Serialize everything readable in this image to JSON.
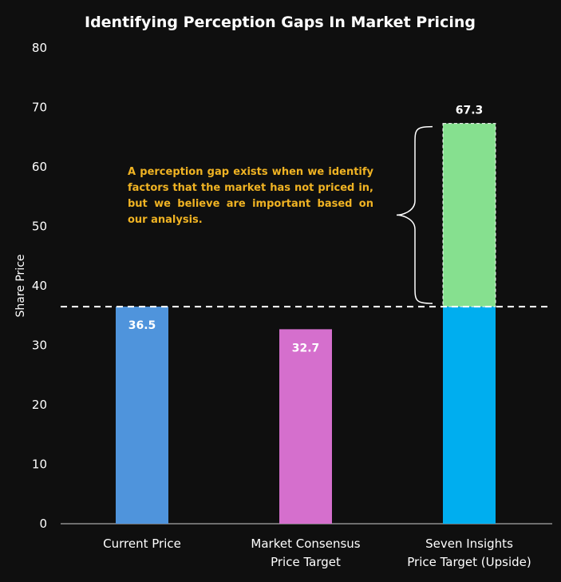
{
  "chart_data": {
    "type": "bar",
    "title": "Identifying Perception Gaps In Market Pricing",
    "ylabel": "Share Price",
    "ylim": [
      0,
      80
    ],
    "yticks": [
      0,
      10,
      20,
      30,
      40,
      50,
      60,
      70,
      80
    ],
    "categories": [
      [
        "Current Price"
      ],
      [
        "Market Consensus",
        "Price Target"
      ],
      [
        "Seven Insights",
        "Price Target (Upside)"
      ]
    ],
    "values": [
      36.5,
      32.7,
      67.3
    ],
    "data_labels": [
      "36.5",
      "32.7",
      "67.3"
    ],
    "colors": [
      "#4f94dc",
      "#d56fcd",
      "#00aeef"
    ],
    "upside": {
      "from": 36.5,
      "to": 67.3,
      "color": "#86e08f"
    },
    "reference_line": {
      "value": 36.5,
      "style": "dashed",
      "color": "#ffffff"
    },
    "annotation": "A perception gap exists when we identify factors that the market has not priced in, but we believe are important based on our analysis.",
    "annotation_color": "#f0b323",
    "grid": false
  }
}
